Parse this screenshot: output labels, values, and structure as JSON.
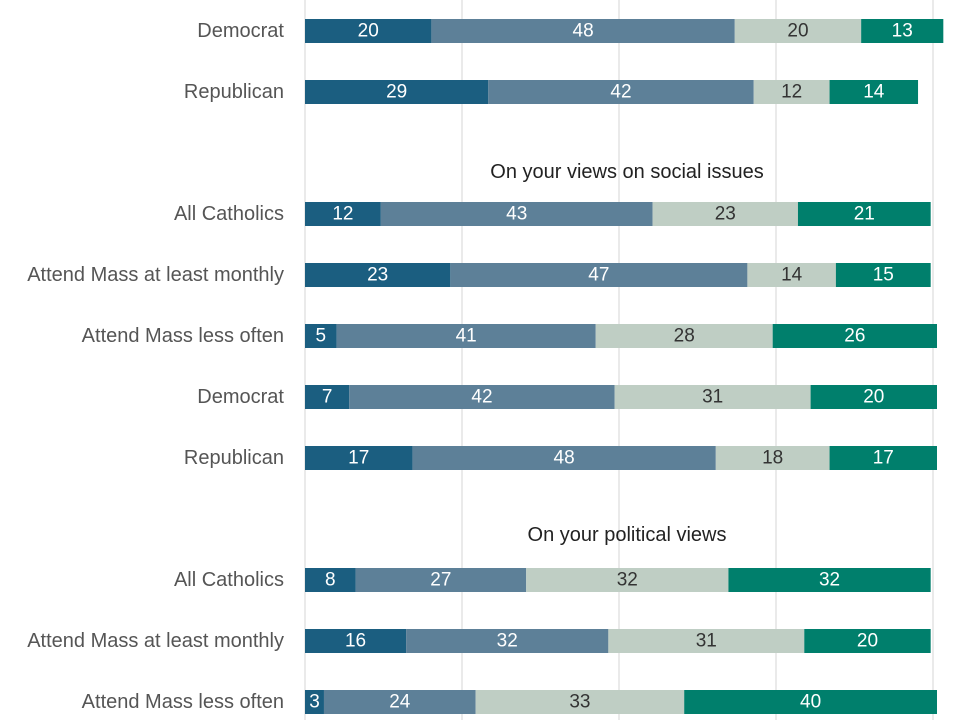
{
  "chart_data": {
    "type": "bar",
    "orientation": "horizontal",
    "stacked": true,
    "grid": true,
    "xlim": [
      0,
      100
    ],
    "segment_colors": [
      "#1b5e80",
      "#5d8098",
      "#bfcec4",
      "#007f6c"
    ],
    "segment_text_colors": [
      "#ffffff",
      "#ffffff",
      "#333333",
      "#ffffff"
    ],
    "sections": [
      {
        "title": "",
        "rows": [
          {
            "label": "Democrat",
            "values": [
              20,
              48,
              20,
              13
            ]
          },
          {
            "label": "Republican",
            "values": [
              29,
              42,
              12,
              14
            ]
          }
        ]
      },
      {
        "title": "On your views on social issues",
        "rows": [
          {
            "label": "All Catholics",
            "values": [
              12,
              43,
              23,
              21
            ]
          },
          {
            "label": "Attend Mass at least monthly",
            "values": [
              23,
              47,
              14,
              15
            ]
          },
          {
            "label": "Attend Mass less often",
            "values": [
              5,
              41,
              28,
              26
            ]
          },
          {
            "label": "Democrat",
            "values": [
              7,
              42,
              31,
              20
            ]
          },
          {
            "label": "Republican",
            "values": [
              17,
              48,
              18,
              17
            ]
          }
        ]
      },
      {
        "title": "On your political views",
        "rows": [
          {
            "label": "All Catholics",
            "values": [
              8,
              27,
              32,
              32
            ]
          },
          {
            "label": "Attend Mass at least monthly",
            "values": [
              16,
              32,
              31,
              20
            ]
          },
          {
            "label": "Attend Mass less often",
            "values": [
              3,
              24,
              33,
              40
            ]
          }
        ]
      }
    ]
  }
}
